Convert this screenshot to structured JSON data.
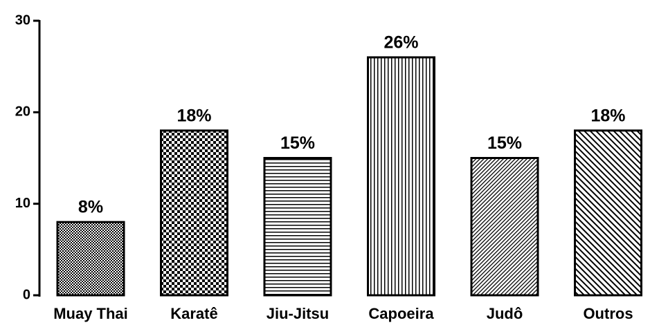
{
  "chart_data": {
    "type": "bar",
    "categories": [
      "Muay Thai",
      "Karatê",
      "Jiu-Jitsu",
      "Capoeira",
      "Judô",
      "Outros"
    ],
    "values": [
      8,
      18,
      15,
      26,
      15,
      18
    ],
    "value_labels": [
      "8%",
      "18%",
      "15%",
      "26%",
      "15%",
      "18%"
    ],
    "ylim": [
      0,
      30
    ],
    "yticks": [
      0,
      10,
      20,
      30
    ],
    "grid": false
  }
}
